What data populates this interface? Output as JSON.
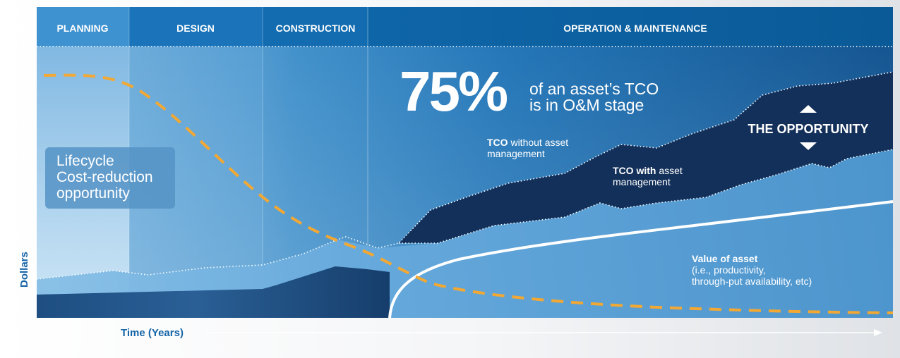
{
  "phases": [
    {
      "label": "PLANNING"
    },
    {
      "label": "DESIGN"
    },
    {
      "label": "CONSTRUCTION"
    },
    {
      "label": "OPERATION & MAINTENANCE"
    }
  ],
  "axes": {
    "y_label": "Dollars",
    "x_label": "Time (Years)"
  },
  "headline": {
    "big": "75%",
    "line1": "of an asset’s TCO",
    "line2": "is in O&M stage"
  },
  "lifecycle_box": {
    "line1": "Lifecycle",
    "line2": "Cost-reduction",
    "line3": "opportunity"
  },
  "tco_without": {
    "bold": "TCO",
    "rest1": " without asset",
    "line2": "management"
  },
  "tco_with": {
    "bold": "TCO with",
    "rest1": " asset",
    "line2": "management"
  },
  "opportunity": {
    "label": "THE OPPORTUNITY"
  },
  "value_of_asset": {
    "title": "Value of asset",
    "line2": "(i.e., productivity,",
    "line3": "through-put availability, etc)"
  },
  "colors": {
    "header_blue": "#0a5f9e",
    "dark_navy": "#13305a",
    "light_blue_band": "#4e97cf",
    "dashed_orange": "#f2a833",
    "axis_text_blue": "#1565a8"
  }
}
